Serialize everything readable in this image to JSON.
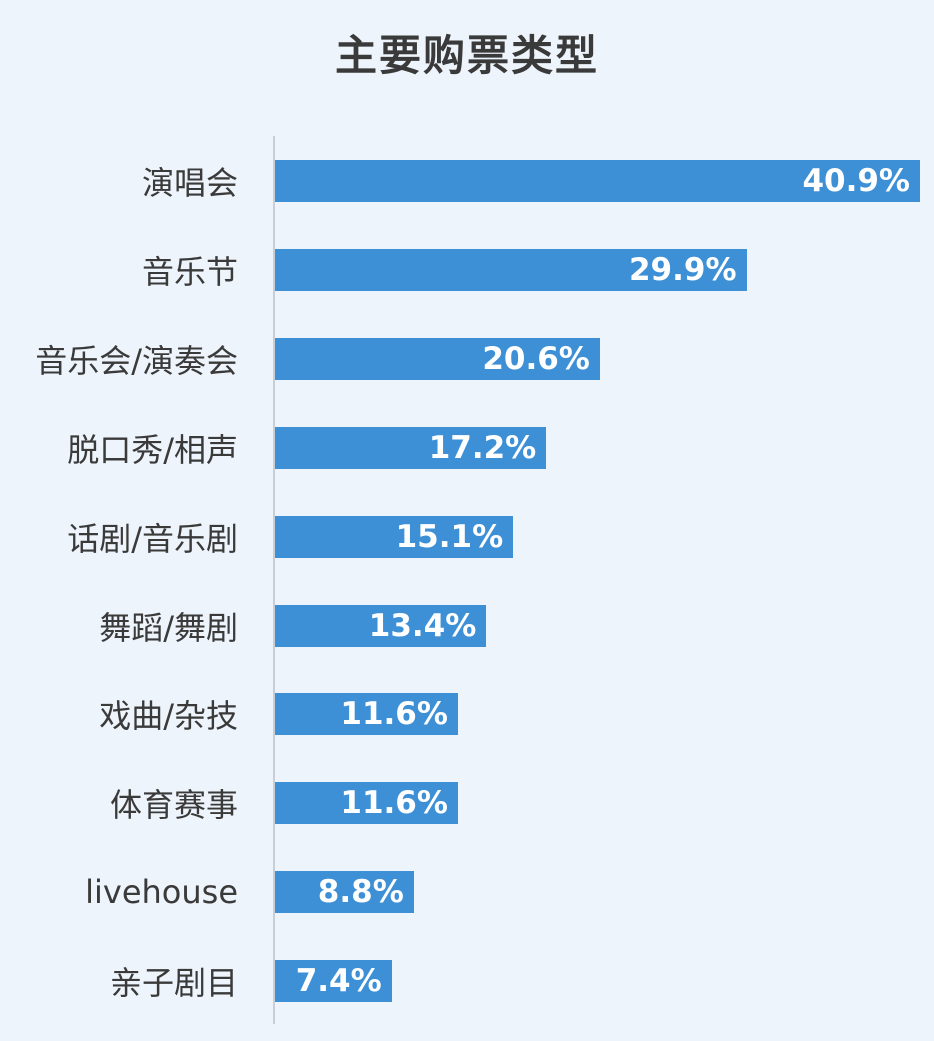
{
  "chart_data": {
    "type": "bar",
    "orientation": "horizontal",
    "title": "主要购票类型",
    "categories": [
      "演唱会",
      "音乐节",
      "音乐会/演奏会",
      "脱口秀/相声",
      "话剧/音乐剧",
      "舞蹈/舞剧",
      "戏曲/杂技",
      "体育赛事",
      "livehouse",
      "亲子剧目"
    ],
    "values": [
      40.9,
      29.9,
      20.6,
      17.2,
      15.1,
      13.4,
      11.6,
      11.6,
      8.8,
      7.4
    ],
    "value_labels": [
      "40.9%",
      "29.9%",
      "20.6%",
      "17.2%",
      "15.1%",
      "13.4%",
      "11.6%",
      "11.6%",
      "8.8%",
      "7.4%"
    ],
    "unit": "%",
    "grid": false,
    "legend": "none",
    "bar_color": "#3d90d6"
  }
}
